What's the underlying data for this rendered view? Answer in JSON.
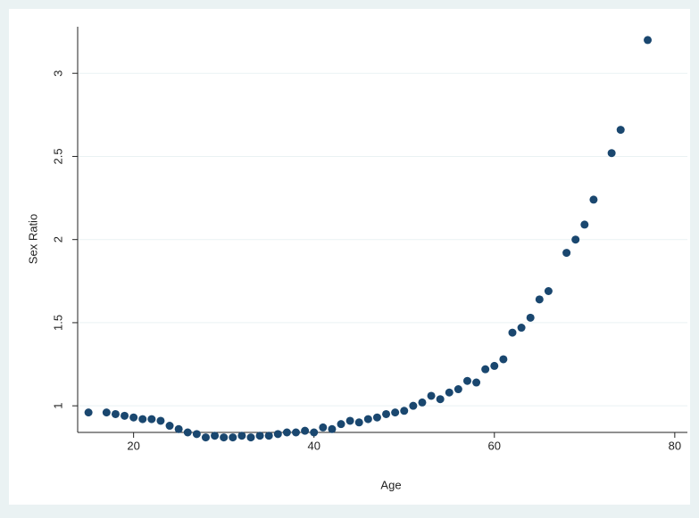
{
  "chart_data": {
    "type": "scatter",
    "x_label": "Age",
    "y_label": "Sex Ratio",
    "x": [
      15,
      17,
      18,
      19,
      20,
      21,
      22,
      23,
      24,
      25,
      26,
      27,
      28,
      29,
      30,
      31,
      32,
      33,
      34,
      35,
      36,
      37,
      38,
      39,
      40,
      41,
      42,
      43,
      44,
      45,
      46,
      47,
      48,
      49,
      50,
      51,
      52,
      53,
      54,
      55,
      56,
      57,
      58,
      59,
      60,
      61,
      62,
      63,
      64,
      65,
      66,
      68,
      69,
      70,
      71,
      73,
      74,
      77
    ],
    "values": [
      0.96,
      0.96,
      0.95,
      0.94,
      0.93,
      0.92,
      0.92,
      0.91,
      0.88,
      0.86,
      0.84,
      0.83,
      0.81,
      0.82,
      0.81,
      0.81,
      0.82,
      0.81,
      0.82,
      0.82,
      0.83,
      0.84,
      0.84,
      0.85,
      0.84,
      0.87,
      0.86,
      0.89,
      0.91,
      0.9,
      0.92,
      0.93,
      0.95,
      0.96,
      0.97,
      1.0,
      1.02,
      1.06,
      1.04,
      1.08,
      1.1,
      1.15,
      1.14,
      1.22,
      1.24,
      1.28,
      1.44,
      1.47,
      1.53,
      1.64,
      1.69,
      1.92,
      2.0,
      2.09,
      2.24,
      2.52,
      2.66,
      3.2
    ],
    "color": "#1a476f",
    "xlim": [
      13.8,
      81.4
    ],
    "ylim": [
      0.84,
      3.28
    ],
    "xticks": [
      20,
      40,
      60,
      80
    ],
    "yticks": [
      1,
      1.5,
      2,
      2.5,
      3
    ],
    "grid": true
  }
}
